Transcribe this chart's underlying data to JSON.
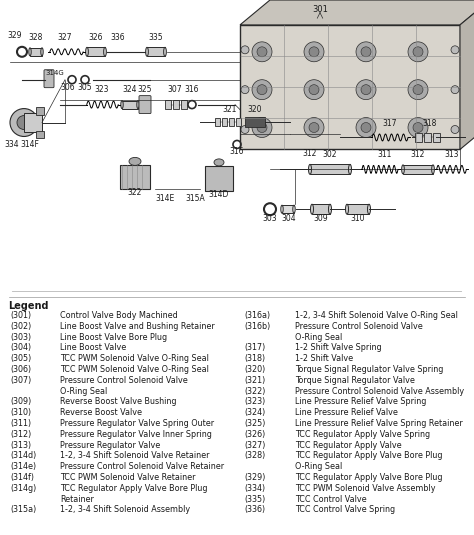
{
  "bg_color": "#f5f2ee",
  "text_color": "#1a1a1a",
  "line_color": "#2a2a2a",
  "legend_title": "Legend",
  "legend_left": [
    [
      "(301)",
      "Control Valve Body Machined"
    ],
    [
      "(302)",
      "Line Boost Valve and Bushing Retainer"
    ],
    [
      "(303)",
      "Line Boost Valve Bore Plug"
    ],
    [
      "(304)",
      "Line Boost Valve"
    ],
    [
      "(305)",
      "TCC PWM Solenoid Valve O-Ring Seal"
    ],
    [
      "(306)",
      "TCC PWM Solenoid Valve O-Ring Seal"
    ],
    [
      "(307)",
      "Pressure Control Solenoid Valve"
    ],
    [
      "",
      "O-Ring Seal"
    ],
    [
      "(309)",
      "Reverse Boost Valve Bushing"
    ],
    [
      "(310)",
      "Reverse Boost Valve"
    ],
    [
      "(311)",
      "Pressure Regulator Valve Spring Outer"
    ],
    [
      "(312)",
      "Pressure Regulator Valve Inner Spring"
    ],
    [
      "(313)",
      "Pressure Regulator Valve"
    ],
    [
      "(314d)",
      "1-2, 3-4 Shift Solenoid Valve Retainer"
    ],
    [
      "(314e)",
      "Pressure Control Solenoid Valve Retainer"
    ],
    [
      "(314f)",
      "TCC PWM Solenoid Valve Retainer"
    ],
    [
      "(314g)",
      "TCC Regulator Apply Valve Bore Plug"
    ],
    [
      "",
      "Retainer"
    ],
    [
      "(315a)",
      "1-2, 3-4 Shift Solenoid Assembly"
    ]
  ],
  "legend_right": [
    [
      "(316a)",
      "1-2, 3-4 Shift Solenoid Valve O-Ring Seal"
    ],
    [
      "(316b)",
      "Pressure Control Solenoid Valve"
    ],
    [
      "",
      "O-Ring Seal"
    ],
    [
      "(317)",
      "1-2 Shift Valve Spring"
    ],
    [
      "(318)",
      "1-2 Shift Valve"
    ],
    [
      "(320)",
      "Torque Signal Regulator Valve Spring"
    ],
    [
      "(321)",
      "Torque Signal Regulator Valve"
    ],
    [
      "(322)",
      "Pressure Control Solenoid Valve Assembly"
    ],
    [
      "(323)",
      "Line Pressure Relief Valve Spring"
    ],
    [
      "(324)",
      "Line Pressure Relief Valve"
    ],
    [
      "(325)",
      "Line Pressure Relief Valve Spring Retainer"
    ],
    [
      "(326)",
      "TCC Regulator Apply Valve Spring"
    ],
    [
      "(327)",
      "TCC Regulator Apply Valve"
    ],
    [
      "(328)",
      "TCC Regulator Apply Valve Bore Plug"
    ],
    [
      "",
      "O-Ring Seal"
    ],
    [
      "(329)",
      "TCC Regulator Apply Valve Bore Plug"
    ],
    [
      "(334)",
      "TCC PWM Solenoid Valve Assembly"
    ],
    [
      "(335)",
      "TCC Control Valve"
    ],
    [
      "(336)",
      "TCC Control Valve Spring"
    ]
  ],
  "diagram_aspect": [
    0.0,
    0.46,
    1.0,
    0.54
  ]
}
